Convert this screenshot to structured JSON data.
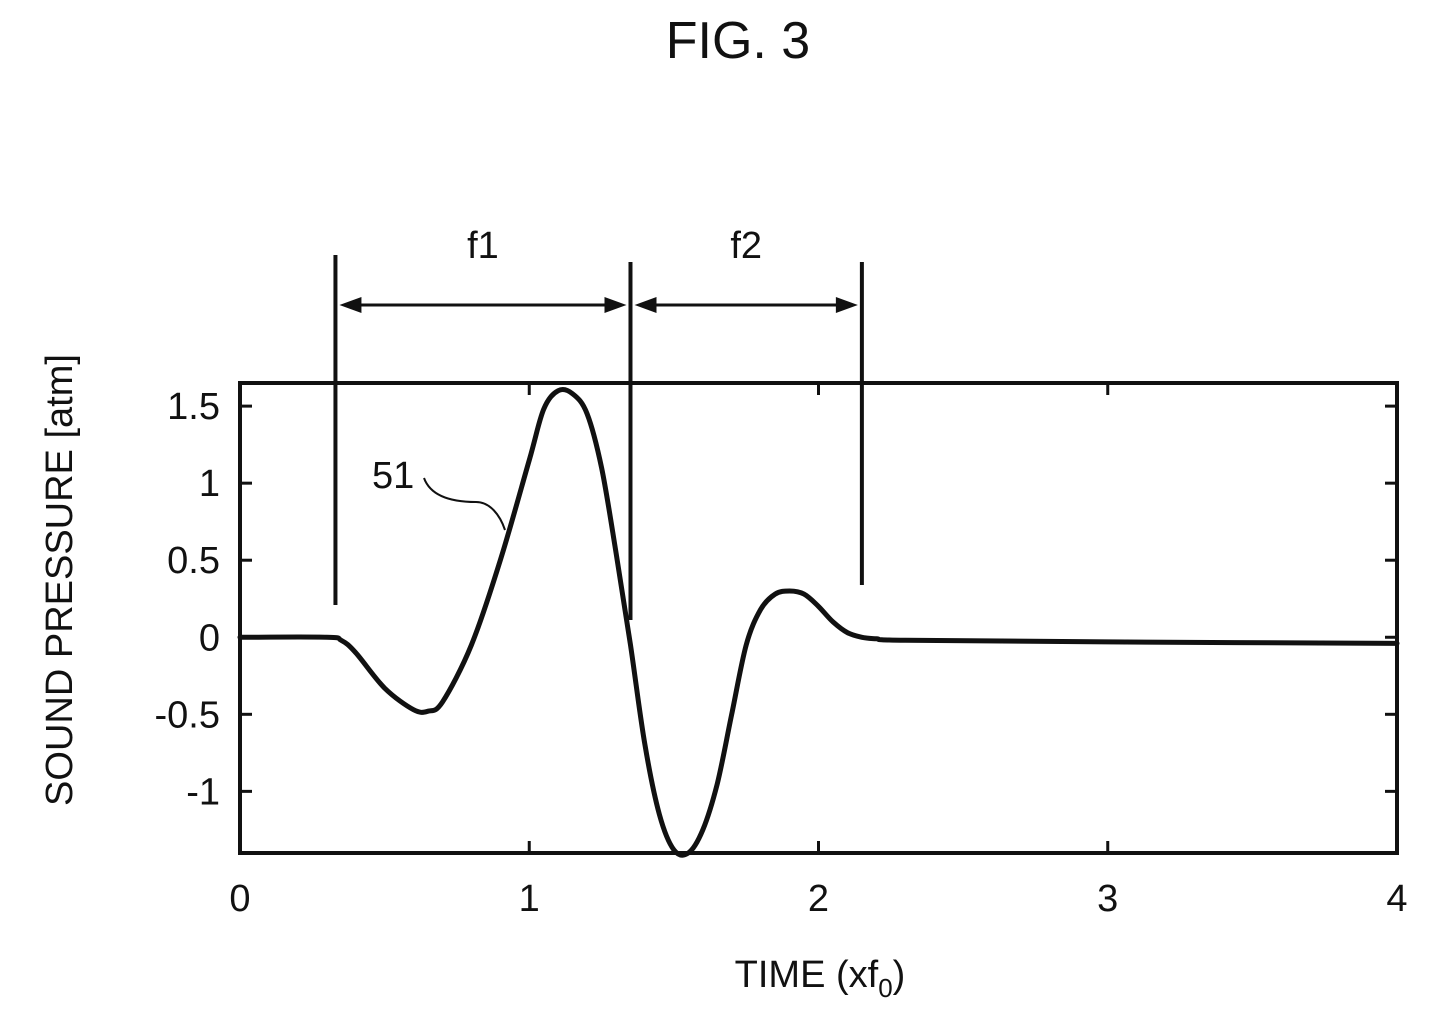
{
  "figure": {
    "title": "FIG. 3"
  },
  "chart_data": {
    "type": "line",
    "title": "",
    "xlabel_main": "TIME (xf",
    "xlabel_sub": "0",
    "xlabel_close": ")",
    "ylabel": "SOUND PRESSURE [atm]",
    "xlim": [
      0,
      4
    ],
    "ylim": [
      -1.4,
      1.65
    ],
    "x_ticks": [
      0,
      1,
      2,
      3,
      4
    ],
    "x_tick_labels": [
      "0",
      "1",
      "2",
      "3",
      "4"
    ],
    "y_ticks": [
      1.5,
      1,
      0.5,
      0,
      -0.5,
      -1
    ],
    "y_tick_labels": [
      "1.5",
      "1",
      "0.5",
      "0",
      "-0.5",
      "-1"
    ],
    "grid": false,
    "series": [
      {
        "label_ref": "51",
        "x": [
          0,
          0.3,
          0.35,
          0.4,
          0.5,
          0.6,
          0.65,
          0.7,
          0.8,
          0.9,
          1.0,
          1.05,
          1.1,
          1.15,
          1.2,
          1.25,
          1.3,
          1.35,
          1.4,
          1.45,
          1.5,
          1.55,
          1.6,
          1.65,
          1.7,
          1.75,
          1.8,
          1.85,
          1.9,
          1.95,
          2.0,
          2.05,
          2.1,
          2.15,
          2.2,
          2.3,
          3.0,
          4.0
        ],
        "y": [
          0,
          0,
          -0.02,
          -0.1,
          -0.33,
          -0.47,
          -0.48,
          -0.42,
          -0.05,
          0.5,
          1.15,
          1.48,
          1.6,
          1.58,
          1.45,
          1.1,
          0.55,
          -0.05,
          -0.7,
          -1.15,
          -1.38,
          -1.4,
          -1.25,
          -0.95,
          -0.5,
          -0.05,
          0.18,
          0.28,
          0.3,
          0.28,
          0.2,
          0.1,
          0.03,
          0.0,
          -0.01,
          -0.02,
          -0.03,
          -0.04
        ],
        "color": "#111111"
      }
    ],
    "annotations": [
      {
        "label": "f1",
        "x_start": 0.33,
        "x_end": 1.35
      },
      {
        "label": "f2",
        "x_start": 1.35,
        "x_end": 2.15
      }
    ],
    "curve_label": "51"
  }
}
